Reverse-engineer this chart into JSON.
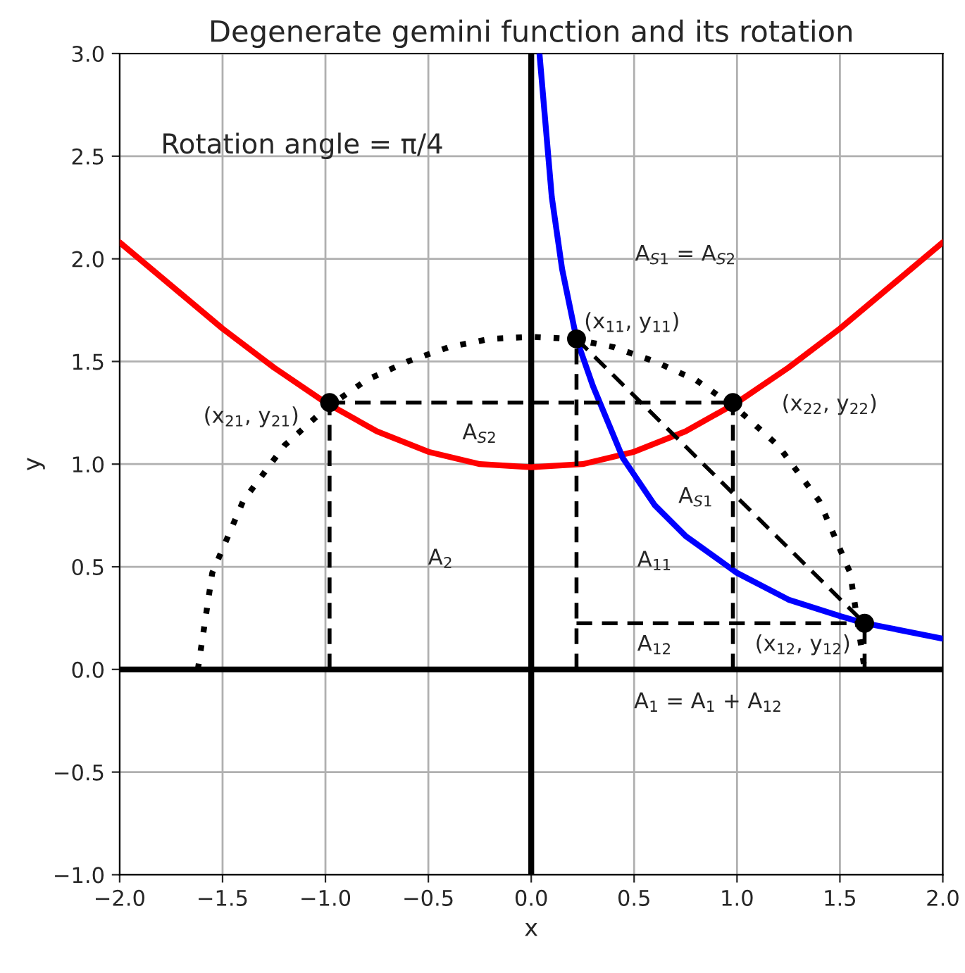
{
  "chart_data": {
    "type": "line",
    "title": "Degenerate gemini function and its rotation",
    "xlabel": "x",
    "ylabel": "y",
    "xlim": [
      -2,
      2
    ],
    "ylim": [
      -1,
      3
    ],
    "xticks": [
      {
        "value": -2,
        "label": "−2.0"
      },
      {
        "value": -1.5,
        "label": "−1.5"
      },
      {
        "value": -1,
        "label": "−1.0"
      },
      {
        "value": -0.5,
        "label": "−0.5"
      },
      {
        "value": 0,
        "label": "0.0"
      },
      {
        "value": 0.5,
        "label": "0.5"
      },
      {
        "value": 1,
        "label": "1.0"
      },
      {
        "value": 1.5,
        "label": "1.5"
      },
      {
        "value": 2,
        "label": "2.0"
      }
    ],
    "yticks": [
      {
        "value": -1,
        "label": "−1.0"
      },
      {
        "value": -0.5,
        "label": "−0.5"
      },
      {
        "value": 0,
        "label": "0.0"
      },
      {
        "value": 0.5,
        "label": "0.5"
      },
      {
        "value": 1,
        "label": "1.0"
      },
      {
        "value": 1.5,
        "label": "1.5"
      },
      {
        "value": 2,
        "label": "2.0"
      },
      {
        "value": 2.5,
        "label": "2.5"
      },
      {
        "value": 3,
        "label": "3.0"
      }
    ],
    "grid": true,
    "series": [
      {
        "color": "#000000",
        "line_style": "solid",
        "x": [
          -2,
          2
        ],
        "values": [
          0,
          0
        ]
      },
      {
        "color": "#000000",
        "line_style": "solid",
        "x": [
          0,
          0
        ],
        "values": [
          -1,
          3
        ]
      },
      {
        "color": "#ff0000",
        "line_style": "solid",
        "x": [
          -2,
          -1.75,
          -1.5,
          -1.25,
          -1,
          -0.75,
          -0.5,
          -0.25,
          0,
          0.25,
          0.5,
          0.75,
          1,
          1.25,
          1.5,
          1.75,
          2
        ],
        "values": [
          2.08,
          1.87,
          1.66,
          1.47,
          1.3,
          1.16,
          1.06,
          1.0,
          0.985,
          1.0,
          1.06,
          1.16,
          1.3,
          1.47,
          1.66,
          1.87,
          2.08
        ]
      },
      {
        "color": "#0000ff",
        "line_style": "solid",
        "x": [
          0.04,
          0.1,
          0.15,
          0.22,
          0.3,
          0.445,
          0.6,
          0.75,
          1,
          1.25,
          1.5,
          1.62,
          1.75,
          2
        ],
        "values": [
          3.0,
          2.3,
          1.95,
          1.61,
          1.38,
          1.03,
          0.8,
          0.65,
          0.47,
          0.34,
          0.26,
          0.225,
          0.2,
          0.15
        ]
      },
      {
        "type": "line",
        "color": "#000000",
        "line_style": "dotted",
        "x": [
          -1.62,
          -1.55,
          -1.4,
          -1.2,
          -1,
          -0.8,
          -0.6,
          -0.4,
          -0.2,
          0,
          0.2,
          0.4,
          0.6,
          0.8,
          1,
          1.2,
          1.4,
          1.55,
          1.62
        ],
        "values": [
          0,
          0.47,
          0.82,
          1.09,
          1.27,
          1.41,
          1.5,
          1.57,
          1.61,
          1.62,
          1.61,
          1.57,
          1.5,
          1.41,
          1.27,
          1.09,
          0.82,
          0.47,
          0
        ]
      },
      {
        "type": "line",
        "color": "#000000",
        "line_style": "dashed",
        "x": [
          -0.98,
          0.98
        ],
        "values": [
          1.3,
          1.3
        ]
      },
      {
        "type": "line",
        "color": "#000000",
        "line_style": "dashed",
        "x": [
          -0.98,
          -0.98
        ],
        "values": [
          0,
          1.3
        ]
      },
      {
        "type": "line",
        "color": "#000000",
        "line_style": "dashed",
        "x": [
          0.22,
          0.22
        ],
        "values": [
          0,
          1.61
        ]
      },
      {
        "type": "line",
        "color": "#000000",
        "line_style": "dashed",
        "x": [
          0.98,
          0.98
        ],
        "values": [
          0,
          1.3
        ]
      },
      {
        "type": "line",
        "color": "#000000",
        "line_style": "dashed",
        "x": [
          0.22,
          1.62
        ],
        "values": [
          0.225,
          0.225
        ]
      },
      {
        "type": "line",
        "color": "#000000",
        "line_style": "dashed",
        "x": [
          0.22,
          1.62
        ],
        "values": [
          1.61,
          0.225
        ]
      },
      {
        "type": "line",
        "color": "#000000",
        "line_style": "dashed",
        "x": [
          1.62,
          1.62
        ],
        "values": [
          0,
          0.225
        ]
      },
      {
        "type": "scatter",
        "color": "#000000",
        "marker": "circle",
        "x": [
          0.22,
          -0.98,
          0.98,
          1.62
        ],
        "values": [
          1.61,
          1.3,
          1.3,
          0.225
        ]
      }
    ],
    "annotations": [
      "Rotation angle = π/4",
      "A$_{S1}$ = A$_{S2}$",
      "(x$_{11}$, y$_{11}$)",
      "(x$_{21}$, y$_{21}$)",
      "(x$_{22}$, y$_{22}$)",
      "A$_{S2}$",
      "A$_{S1}$",
      "A$_{2}$",
      "A$_{11}$",
      "A$_{12}$",
      "(x$_{12}$, y$_{12}$)",
      "A$_{1}$ = A$_{1}$ + A$_{12}$"
    ]
  }
}
